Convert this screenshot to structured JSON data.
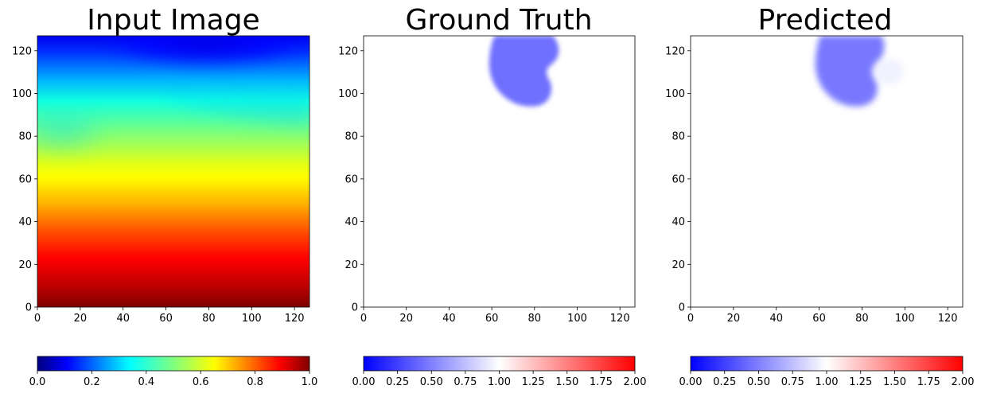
{
  "chart_data": [
    {
      "type": "heatmap",
      "title": "Input Image",
      "xlim": [
        0,
        127
      ],
      "ylim": [
        0,
        127
      ],
      "xticks": [
        "0",
        "20",
        "40",
        "60",
        "80",
        "100",
        "120"
      ],
      "yticks": [
        "0",
        "20",
        "40",
        "60",
        "80",
        "100",
        "120"
      ],
      "description_field": "smooth scalar field, ~0 (dark blue) near y=127 peaking around x=80, rising to ~1 (dark red) at y=0",
      "colorbar": {
        "colormap": "jet",
        "range": [
          0,
          1
        ],
        "ticks": [
          "0.0",
          "0.2",
          "0.4",
          "0.6",
          "0.8",
          "1.0"
        ]
      }
    },
    {
      "type": "heatmap",
      "title": "Ground Truth",
      "xlim": [
        0,
        127
      ],
      "ylim": [
        0,
        127
      ],
      "xticks": [
        "0",
        "20",
        "40",
        "60",
        "80",
        "100",
        "120"
      ],
      "yticks": [
        "0",
        "20",
        "40",
        "60",
        "80",
        "100",
        "120"
      ],
      "background_value": 1.0,
      "blob_value": 0.55,
      "colorbar": {
        "colormap": "bwr",
        "range": [
          0,
          2
        ],
        "ticks": [
          "0.00",
          "0.25",
          "0.50",
          "0.75",
          "1.00",
          "1.25",
          "1.50",
          "1.75",
          "2.00"
        ]
      }
    },
    {
      "type": "heatmap",
      "title": "Predicted",
      "xlim": [
        0,
        127
      ],
      "ylim": [
        0,
        127
      ],
      "xticks": [
        "0",
        "20",
        "40",
        "60",
        "80",
        "100",
        "120"
      ],
      "yticks": [
        "0",
        "20",
        "40",
        "60",
        "80",
        "100",
        "120"
      ],
      "background_value": 1.0,
      "blob_value": 0.6,
      "colorbar": {
        "colormap": "bwr",
        "range": [
          0,
          2
        ],
        "ticks": [
          "0.00",
          "0.25",
          "0.50",
          "0.75",
          "1.00",
          "1.25",
          "1.50",
          "1.75",
          "2.00"
        ]
      }
    }
  ],
  "colors": {
    "jet": [
      "#00007f",
      "#0000ff",
      "#00ffff",
      "#ffff00",
      "#ff0000",
      "#7f0000"
    ],
    "bwr": [
      "#0000ff",
      "#ffffff",
      "#ff0000"
    ],
    "blob": "#7070ff"
  }
}
